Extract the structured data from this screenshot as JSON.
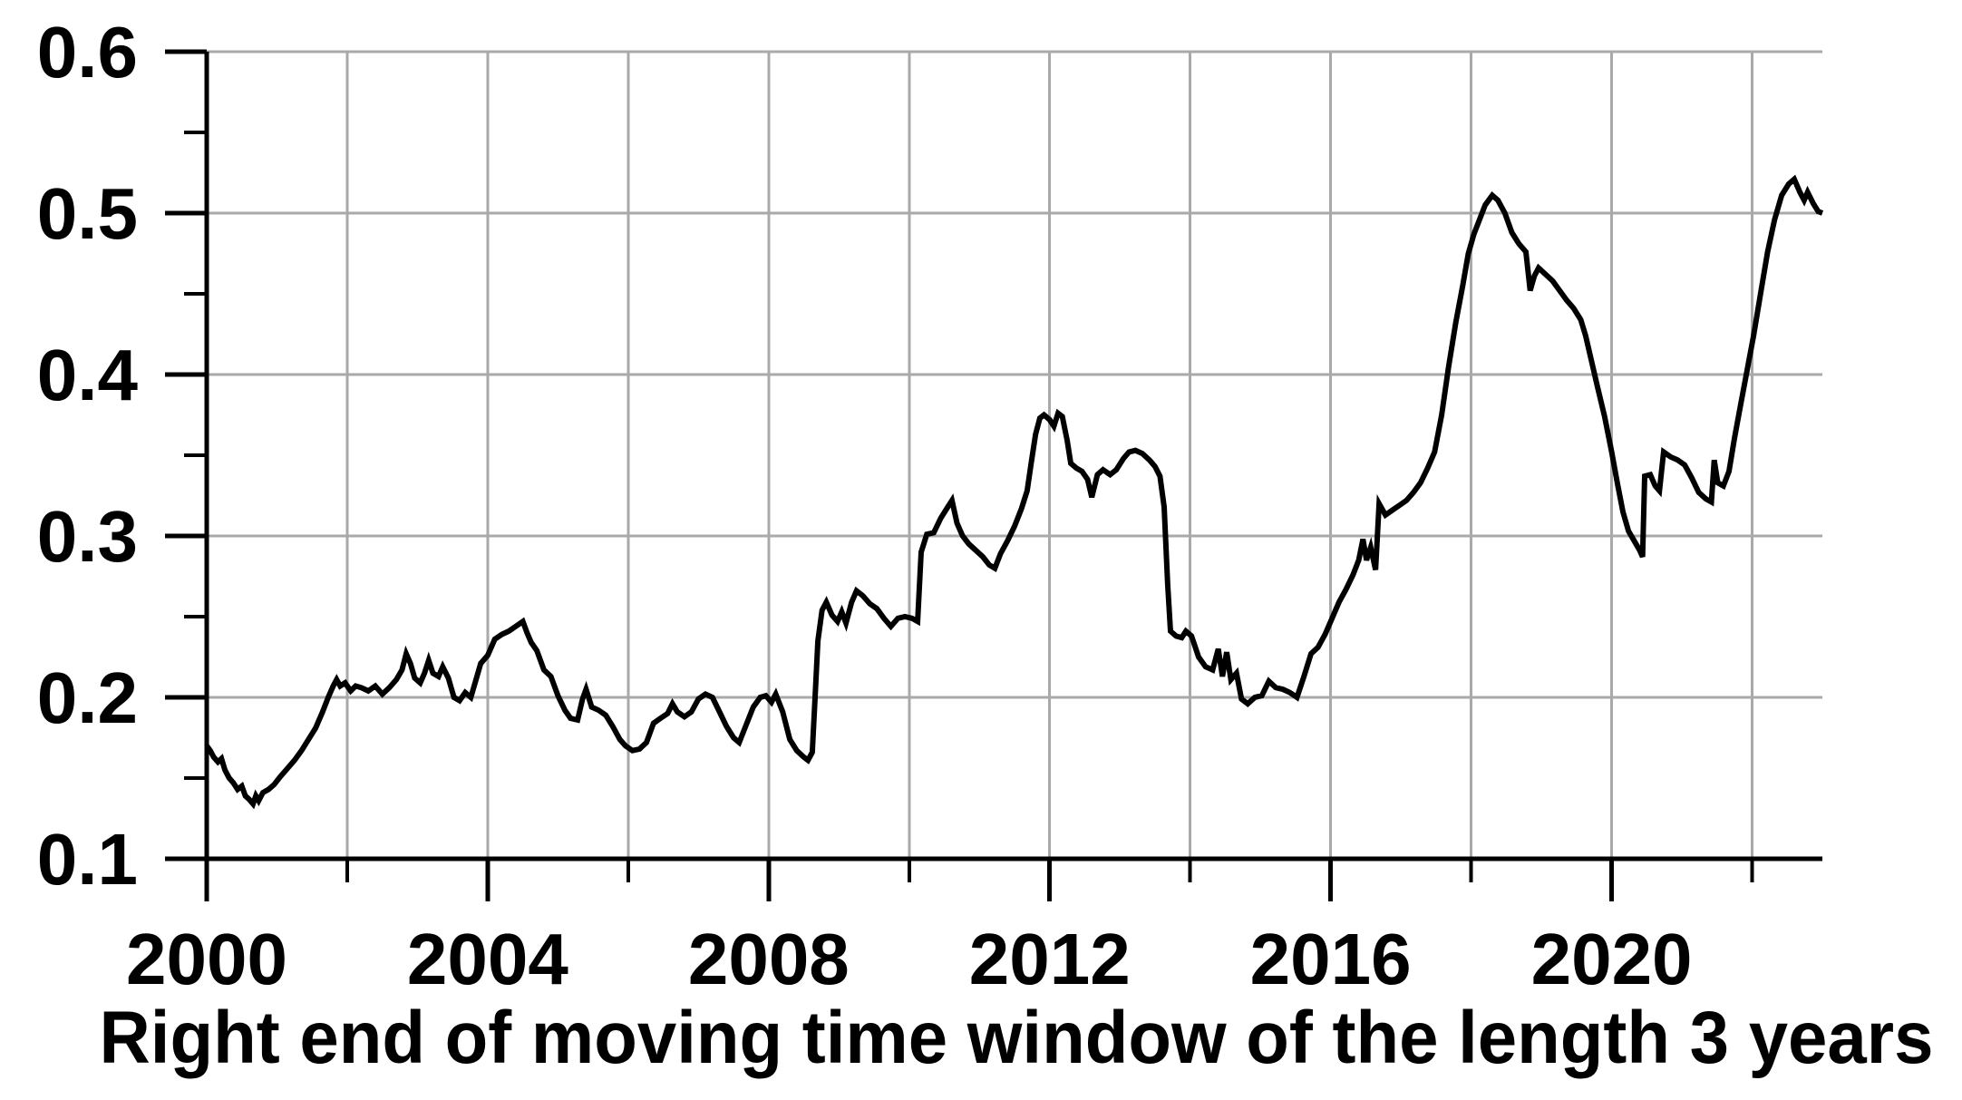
{
  "chart_data": {
    "type": "line",
    "title": "",
    "xlabel": "Right end of moving time window of the length 3 years",
    "ylabel": "",
    "xlim": [
      2000,
      2023
    ],
    "ylim": [
      0.1,
      0.6
    ],
    "grid": true,
    "legend": "none",
    "x_major_ticks": [
      2000,
      2004,
      2008,
      2012,
      2016,
      2020
    ],
    "x_minor_ticks": [
      2002,
      2006,
      2010,
      2014,
      2018,
      2022
    ],
    "x_tick_labels": [
      "2000",
      "2004",
      "2008",
      "2012",
      "2016",
      "2020"
    ],
    "y_major_ticks": [
      0.1,
      0.2,
      0.3,
      0.4,
      0.5,
      0.6
    ],
    "y_minor_ticks": [
      0.15,
      0.25,
      0.35,
      0.45,
      0.55
    ],
    "y_tick_labels": [
      "0.1",
      "0.2",
      "0.3",
      "0.4",
      "0.5",
      "0.6"
    ],
    "colors": {
      "line": "#000000",
      "grid": "#a9a9a9",
      "axis": "#000000",
      "background": "#ffffff"
    },
    "points": [
      [
        2000.0,
        0.17
      ],
      [
        2000.05,
        0.167
      ],
      [
        2000.1,
        0.163
      ],
      [
        2000.16,
        0.16
      ],
      [
        2000.21,
        0.162
      ],
      [
        2000.26,
        0.155
      ],
      [
        2000.32,
        0.15
      ],
      [
        2000.38,
        0.147
      ],
      [
        2000.44,
        0.143
      ],
      [
        2000.5,
        0.145
      ],
      [
        2000.55,
        0.139
      ],
      [
        2000.6,
        0.137
      ],
      [
        2000.66,
        0.134
      ],
      [
        2000.7,
        0.139
      ],
      [
        2000.74,
        0.136
      ],
      [
        2000.8,
        0.141
      ],
      [
        2000.88,
        0.143
      ],
      [
        2000.96,
        0.146
      ],
      [
        2001.05,
        0.151
      ],
      [
        2001.15,
        0.156
      ],
      [
        2001.25,
        0.161
      ],
      [
        2001.35,
        0.167
      ],
      [
        2001.45,
        0.174
      ],
      [
        2001.55,
        0.181
      ],
      [
        2001.65,
        0.191
      ],
      [
        2001.73,
        0.2
      ],
      [
        2001.8,
        0.207
      ],
      [
        2001.85,
        0.211
      ],
      [
        2001.9,
        0.207
      ],
      [
        2001.97,
        0.209
      ],
      [
        2002.05,
        0.204
      ],
      [
        2002.12,
        0.207
      ],
      [
        2002.2,
        0.206
      ],
      [
        2002.3,
        0.204
      ],
      [
        2002.4,
        0.207
      ],
      [
        2002.5,
        0.202
      ],
      [
        2002.6,
        0.206
      ],
      [
        2002.7,
        0.211
      ],
      [
        2002.78,
        0.217
      ],
      [
        2002.84,
        0.227
      ],
      [
        2002.9,
        0.221
      ],
      [
        2002.96,
        0.212
      ],
      [
        2003.04,
        0.209
      ],
      [
        2003.1,
        0.215
      ],
      [
        2003.16,
        0.223
      ],
      [
        2003.22,
        0.215
      ],
      [
        2003.3,
        0.213
      ],
      [
        2003.36,
        0.219
      ],
      [
        2003.44,
        0.212
      ],
      [
        2003.52,
        0.2
      ],
      [
        2003.6,
        0.198
      ],
      [
        2003.68,
        0.203
      ],
      [
        2003.76,
        0.2
      ],
      [
        2003.82,
        0.209
      ],
      [
        2003.9,
        0.221
      ],
      [
        2004.0,
        0.226
      ],
      [
        2004.1,
        0.236
      ],
      [
        2004.2,
        0.239
      ],
      [
        2004.3,
        0.241
      ],
      [
        2004.4,
        0.244
      ],
      [
        2004.5,
        0.247
      ],
      [
        2004.56,
        0.24
      ],
      [
        2004.62,
        0.234
      ],
      [
        2004.7,
        0.229
      ],
      [
        2004.8,
        0.217
      ],
      [
        2004.9,
        0.213
      ],
      [
        2005.0,
        0.201
      ],
      [
        2005.1,
        0.192
      ],
      [
        2005.18,
        0.187
      ],
      [
        2005.28,
        0.186
      ],
      [
        2005.35,
        0.199
      ],
      [
        2005.4,
        0.205
      ],
      [
        2005.48,
        0.194
      ],
      [
        2005.58,
        0.192
      ],
      [
        2005.68,
        0.189
      ],
      [
        2005.78,
        0.182
      ],
      [
        2005.88,
        0.174
      ],
      [
        2005.96,
        0.17
      ],
      [
        2006.06,
        0.167
      ],
      [
        2006.16,
        0.168
      ],
      [
        2006.26,
        0.172
      ],
      [
        2006.36,
        0.184
      ],
      [
        2006.46,
        0.187
      ],
      [
        2006.56,
        0.19
      ],
      [
        2006.63,
        0.196
      ],
      [
        2006.7,
        0.191
      ],
      [
        2006.8,
        0.188
      ],
      [
        2006.9,
        0.191
      ],
      [
        2007.0,
        0.199
      ],
      [
        2007.1,
        0.202
      ],
      [
        2007.2,
        0.2
      ],
      [
        2007.3,
        0.191
      ],
      [
        2007.4,
        0.182
      ],
      [
        2007.5,
        0.175
      ],
      [
        2007.58,
        0.172
      ],
      [
        2007.68,
        0.183
      ],
      [
        2007.78,
        0.194
      ],
      [
        2007.88,
        0.2
      ],
      [
        2007.96,
        0.201
      ],
      [
        2008.04,
        0.197
      ],
      [
        2008.1,
        0.202
      ],
      [
        2008.2,
        0.191
      ],
      [
        2008.3,
        0.174
      ],
      [
        2008.4,
        0.167
      ],
      [
        2008.5,
        0.163
      ],
      [
        2008.56,
        0.161
      ],
      [
        2008.62,
        0.166
      ],
      [
        2008.66,
        0.2
      ],
      [
        2008.7,
        0.235
      ],
      [
        2008.76,
        0.254
      ],
      [
        2008.82,
        0.259
      ],
      [
        2008.9,
        0.251
      ],
      [
        2008.98,
        0.247
      ],
      [
        2009.04,
        0.253
      ],
      [
        2009.1,
        0.246
      ],
      [
        2009.18,
        0.259
      ],
      [
        2009.25,
        0.266
      ],
      [
        2009.34,
        0.263
      ],
      [
        2009.44,
        0.258
      ],
      [
        2009.54,
        0.255
      ],
      [
        2009.64,
        0.249
      ],
      [
        2009.74,
        0.244
      ],
      [
        2009.84,
        0.249
      ],
      [
        2009.94,
        0.25
      ],
      [
        2010.04,
        0.249
      ],
      [
        2010.12,
        0.247
      ],
      [
        2010.17,
        0.29
      ],
      [
        2010.25,
        0.301
      ],
      [
        2010.35,
        0.302
      ],
      [
        2010.45,
        0.311
      ],
      [
        2010.55,
        0.318
      ],
      [
        2010.61,
        0.322
      ],
      [
        2010.68,
        0.308
      ],
      [
        2010.76,
        0.3
      ],
      [
        2010.85,
        0.295
      ],
      [
        2010.95,
        0.291
      ],
      [
        2011.05,
        0.287
      ],
      [
        2011.14,
        0.282
      ],
      [
        2011.22,
        0.28
      ],
      [
        2011.3,
        0.289
      ],
      [
        2011.4,
        0.297
      ],
      [
        2011.5,
        0.306
      ],
      [
        2011.6,
        0.317
      ],
      [
        2011.68,
        0.328
      ],
      [
        2011.74,
        0.346
      ],
      [
        2011.8,
        0.363
      ],
      [
        2011.86,
        0.373
      ],
      [
        2011.92,
        0.375
      ],
      [
        2012.0,
        0.372
      ],
      [
        2012.06,
        0.368
      ],
      [
        2012.12,
        0.376
      ],
      [
        2012.18,
        0.374
      ],
      [
        2012.25,
        0.359
      ],
      [
        2012.3,
        0.345
      ],
      [
        2012.38,
        0.342
      ],
      [
        2012.46,
        0.34
      ],
      [
        2012.54,
        0.335
      ],
      [
        2012.6,
        0.324
      ],
      [
        2012.68,
        0.338
      ],
      [
        2012.76,
        0.341
      ],
      [
        2012.86,
        0.338
      ],
      [
        2012.95,
        0.341
      ],
      [
        2013.05,
        0.348
      ],
      [
        2013.13,
        0.352
      ],
      [
        2013.22,
        0.353
      ],
      [
        2013.32,
        0.351
      ],
      [
        2013.42,
        0.347
      ],
      [
        2013.5,
        0.343
      ],
      [
        2013.57,
        0.337
      ],
      [
        2013.63,
        0.318
      ],
      [
        2013.68,
        0.27
      ],
      [
        2013.72,
        0.241
      ],
      [
        2013.8,
        0.238
      ],
      [
        2013.88,
        0.237
      ],
      [
        2013.94,
        0.241
      ],
      [
        2014.02,
        0.238
      ],
      [
        2014.12,
        0.225
      ],
      [
        2014.22,
        0.219
      ],
      [
        2014.32,
        0.217
      ],
      [
        2014.4,
        0.23
      ],
      [
        2014.46,
        0.213
      ],
      [
        2014.52,
        0.228
      ],
      [
        2014.58,
        0.211
      ],
      [
        2014.66,
        0.215
      ],
      [
        2014.73,
        0.199
      ],
      [
        2014.82,
        0.196
      ],
      [
        2014.92,
        0.2
      ],
      [
        2015.02,
        0.201
      ],
      [
        2015.12,
        0.21
      ],
      [
        2015.22,
        0.206
      ],
      [
        2015.32,
        0.205
      ],
      [
        2015.42,
        0.203
      ],
      [
        2015.52,
        0.2
      ],
      [
        2015.62,
        0.213
      ],
      [
        2015.72,
        0.227
      ],
      [
        2015.82,
        0.231
      ],
      [
        2015.92,
        0.239
      ],
      [
        2016.02,
        0.249
      ],
      [
        2016.12,
        0.259
      ],
      [
        2016.22,
        0.267
      ],
      [
        2016.32,
        0.276
      ],
      [
        2016.4,
        0.285
      ],
      [
        2016.46,
        0.298
      ],
      [
        2016.51,
        0.285
      ],
      [
        2016.57,
        0.293
      ],
      [
        2016.64,
        0.279
      ],
      [
        2016.69,
        0.32
      ],
      [
        2016.78,
        0.313
      ],
      [
        2016.88,
        0.316
      ],
      [
        2016.98,
        0.319
      ],
      [
        2017.08,
        0.322
      ],
      [
        2017.18,
        0.327
      ],
      [
        2017.28,
        0.333
      ],
      [
        2017.38,
        0.342
      ],
      [
        2017.48,
        0.352
      ],
      [
        2017.58,
        0.375
      ],
      [
        2017.68,
        0.405
      ],
      [
        2017.78,
        0.432
      ],
      [
        2017.88,
        0.455
      ],
      [
        2017.96,
        0.475
      ],
      [
        2018.04,
        0.487
      ],
      [
        2018.12,
        0.496
      ],
      [
        2018.2,
        0.505
      ],
      [
        2018.3,
        0.511
      ],
      [
        2018.38,
        0.508
      ],
      [
        2018.48,
        0.5
      ],
      [
        2018.58,
        0.488
      ],
      [
        2018.68,
        0.481
      ],
      [
        2018.78,
        0.476
      ],
      [
        2018.84,
        0.452
      ],
      [
        2018.9,
        0.461
      ],
      [
        2018.96,
        0.466
      ],
      [
        2019.06,
        0.462
      ],
      [
        2019.16,
        0.458
      ],
      [
        2019.26,
        0.452
      ],
      [
        2019.36,
        0.446
      ],
      [
        2019.46,
        0.441
      ],
      [
        2019.56,
        0.434
      ],
      [
        2019.63,
        0.424
      ],
      [
        2019.71,
        0.409
      ],
      [
        2019.8,
        0.392
      ],
      [
        2019.9,
        0.374
      ],
      [
        2020.0,
        0.352
      ],
      [
        2020.08,
        0.333
      ],
      [
        2020.16,
        0.315
      ],
      [
        2020.24,
        0.303
      ],
      [
        2020.32,
        0.297
      ],
      [
        2020.4,
        0.291
      ],
      [
        2020.44,
        0.287
      ],
      [
        2020.47,
        0.337
      ],
      [
        2020.55,
        0.338
      ],
      [
        2020.62,
        0.331
      ],
      [
        2020.68,
        0.328
      ],
      [
        2020.74,
        0.352
      ],
      [
        2020.84,
        0.349
      ],
      [
        2020.94,
        0.347
      ],
      [
        2021.04,
        0.344
      ],
      [
        2021.14,
        0.336
      ],
      [
        2021.24,
        0.327
      ],
      [
        2021.34,
        0.323
      ],
      [
        2021.42,
        0.321
      ],
      [
        2021.46,
        0.347
      ],
      [
        2021.51,
        0.333
      ],
      [
        2021.59,
        0.331
      ],
      [
        2021.67,
        0.34
      ],
      [
        2021.75,
        0.361
      ],
      [
        2021.84,
        0.382
      ],
      [
        2021.93,
        0.403
      ],
      [
        2022.02,
        0.424
      ],
      [
        2022.12,
        0.45
      ],
      [
        2022.22,
        0.476
      ],
      [
        2022.32,
        0.496
      ],
      [
        2022.42,
        0.511
      ],
      [
        2022.52,
        0.518
      ],
      [
        2022.6,
        0.521
      ],
      [
        2022.68,
        0.513
      ],
      [
        2022.74,
        0.508
      ],
      [
        2022.79,
        0.513
      ],
      [
        2022.87,
        0.506
      ],
      [
        2022.94,
        0.501
      ],
      [
        2023.0,
        0.5
      ]
    ]
  }
}
